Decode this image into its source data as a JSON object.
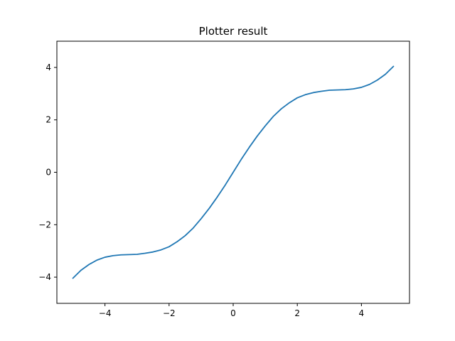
{
  "chart_data": {
    "type": "line",
    "title": "Plotter result",
    "xlabel": "",
    "ylabel": "",
    "xlim": [
      -5.5,
      5.5
    ],
    "ylim": [
      -5,
      5
    ],
    "x_ticks": [
      -4,
      -2,
      0,
      2,
      4
    ],
    "y_ticks": [
      -4,
      -2,
      0,
      2,
      4
    ],
    "x_tick_labels": [
      "−4",
      "−2",
      "0",
      "2",
      "4"
    ],
    "y_tick_labels": [
      "−4",
      "−2",
      "0",
      "2",
      "4"
    ],
    "grid": false,
    "series": [
      {
        "color": "#1f77b4",
        "x": [
          -5.0,
          -4.75,
          -4.5,
          -4.25,
          -4.0,
          -3.75,
          -3.5,
          -3.25,
          -3.0,
          -2.75,
          -2.5,
          -2.25,
          -2.0,
          -1.75,
          -1.5,
          -1.25,
          -1.0,
          -0.75,
          -0.5,
          -0.25,
          0.0,
          0.25,
          0.5,
          0.75,
          1.0,
          1.25,
          1.5,
          1.75,
          2.0,
          2.25,
          2.5,
          2.75,
          3.0,
          3.25,
          3.5,
          3.75,
          4.0,
          4.25,
          4.5,
          4.75,
          5.0
        ],
        "y": [
          -4.04,
          -3.74,
          -3.52,
          -3.35,
          -3.24,
          -3.18,
          -3.15,
          -3.14,
          -3.13,
          -3.09,
          -3.04,
          -2.96,
          -2.84,
          -2.65,
          -2.42,
          -2.13,
          -1.77,
          -1.38,
          -0.95,
          -0.49,
          0.0,
          0.49,
          0.95,
          1.38,
          1.77,
          2.13,
          2.42,
          2.65,
          2.84,
          2.96,
          3.04,
          3.09,
          3.13,
          3.14,
          3.15,
          3.18,
          3.24,
          3.35,
          3.52,
          3.74,
          4.04
        ]
      }
    ]
  }
}
